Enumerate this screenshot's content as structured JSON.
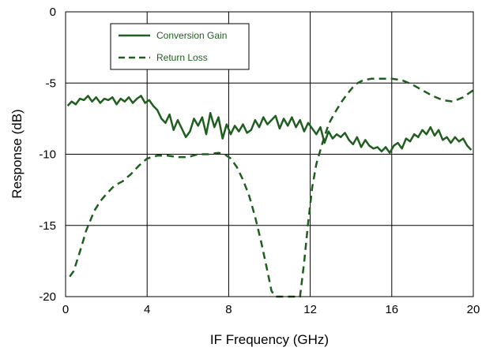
{
  "chart_data": {
    "type": "line",
    "xlabel": "IF Frequency (GHz)",
    "ylabel": "Response (dB)",
    "xlim": [
      0,
      20
    ],
    "ylim": [
      -20,
      0
    ],
    "x_ticks": [
      0,
      4,
      8,
      12,
      16,
      20
    ],
    "y_ticks": [
      0,
      -5,
      -10,
      -15,
      -20
    ],
    "x_tick_labels": [
      "0",
      "4",
      "8",
      "12",
      "16",
      "20"
    ],
    "y_tick_labels": [
      "0",
      "-5",
      "-10",
      "-15",
      "-20"
    ],
    "grid": true,
    "legend_position": "top-left",
    "series": [
      {
        "name": "Conversion Gain",
        "style": "solid",
        "color": "#1f5e1f",
        "x": [
          0.1,
          0.3,
          0.5,
          0.7,
          0.9,
          1.1,
          1.3,
          1.5,
          1.7,
          1.9,
          2.1,
          2.3,
          2.5,
          2.7,
          2.9,
          3.1,
          3.3,
          3.5,
          3.7,
          3.9,
          4.1,
          4.3,
          4.5,
          4.7,
          4.9,
          5.1,
          5.3,
          5.5,
          5.7,
          5.9,
          6.1,
          6.3,
          6.5,
          6.7,
          6.9,
          7.1,
          7.3,
          7.5,
          7.7,
          7.9,
          8.1,
          8.3,
          8.5,
          8.7,
          8.9,
          9.1,
          9.3,
          9.5,
          9.7,
          9.9,
          10.1,
          10.3,
          10.5,
          10.7,
          10.9,
          11.1,
          11.3,
          11.5,
          11.7,
          11.9,
          12.1,
          12.3,
          12.5,
          12.7,
          12.9,
          13.1,
          13.3,
          13.5,
          13.7,
          13.9,
          14.1,
          14.3,
          14.5,
          14.7,
          14.9,
          15.1,
          15.3,
          15.5,
          15.7,
          15.9,
          16.1,
          16.3,
          16.5,
          16.7,
          16.9,
          17.1,
          17.3,
          17.5,
          17.7,
          17.9,
          18.1,
          18.3,
          18.5,
          18.7,
          18.9,
          19.1,
          19.3,
          19.5,
          19.7,
          19.9
        ],
        "values": [
          -6.6,
          -6.3,
          -6.5,
          -6.1,
          -6.2,
          -5.9,
          -6.3,
          -6.0,
          -6.4,
          -6.1,
          -6.2,
          -6.0,
          -6.5,
          -6.1,
          -6.3,
          -6.0,
          -6.4,
          -6.1,
          -5.9,
          -6.4,
          -6.2,
          -6.6,
          -6.9,
          -7.5,
          -7.8,
          -7.2,
          -8.3,
          -7.6,
          -8.2,
          -8.8,
          -8.4,
          -7.5,
          -8.0,
          -7.4,
          -8.6,
          -7.1,
          -8.1,
          -7.4,
          -8.9,
          -7.9,
          -8.6,
          -8.0,
          -8.4,
          -7.9,
          -8.5,
          -8.3,
          -7.6,
          -8.1,
          -7.4,
          -7.9,
          -7.6,
          -7.3,
          -8.2,
          -7.5,
          -8.0,
          -7.4,
          -8.1,
          -7.6,
          -8.4,
          -7.8,
          -8.2,
          -8.6,
          -8.1,
          -9.2,
          -8.4,
          -8.9,
          -8.6,
          -8.8,
          -8.5,
          -9.0,
          -9.3,
          -8.8,
          -9.5,
          -9.0,
          -9.4,
          -9.6,
          -9.5,
          -9.8,
          -9.5,
          -9.9,
          -9.4,
          -9.2,
          -9.6,
          -8.9,
          -9.1,
          -8.6,
          -8.8,
          -8.3,
          -8.6,
          -8.1,
          -8.7,
          -8.3,
          -9.0,
          -8.8,
          -9.2,
          -8.8,
          -9.1,
          -8.9,
          -9.4,
          -9.7
        ]
      },
      {
        "name": "Return Loss",
        "style": "dashed",
        "color": "#1f5e1f",
        "x": [
          0.2,
          0.4,
          0.6,
          0.8,
          1.0,
          1.2,
          1.4,
          1.7,
          2.0,
          2.4,
          2.8,
          3.2,
          3.6,
          4.0,
          4.5,
          5.0,
          5.5,
          6.0,
          6.5,
          7.0,
          7.5,
          7.8,
          8.1,
          8.4,
          8.7,
          9.0,
          9.3,
          9.6,
          9.9,
          10.1,
          10.3,
          11.5,
          11.7,
          11.9,
          12.1,
          12.3,
          12.6,
          12.9,
          13.2,
          13.5,
          13.8,
          14.2,
          14.6,
          15.0,
          15.5,
          16.0,
          16.5,
          17.0,
          17.5,
          18.0,
          18.5,
          19.0,
          19.5,
          20.0
        ],
        "values": [
          -18.6,
          -18.2,
          -17.3,
          -16.4,
          -15.4,
          -14.7,
          -14.0,
          -13.3,
          -12.8,
          -12.2,
          -11.9,
          -11.4,
          -10.8,
          -10.3,
          -10.1,
          -10.1,
          -10.2,
          -10.2,
          -10.0,
          -10.0,
          -9.9,
          -10.0,
          -10.3,
          -10.9,
          -11.8,
          -12.9,
          -14.4,
          -16.2,
          -18.2,
          -19.6,
          -20.0,
          -20.0,
          -17.6,
          -14.8,
          -12.3,
          -10.7,
          -9.2,
          -7.9,
          -7.1,
          -6.4,
          -5.8,
          -5.1,
          -4.8,
          -4.7,
          -4.7,
          -4.7,
          -4.8,
          -5.1,
          -5.5,
          -5.9,
          -6.2,
          -6.3,
          -6.0,
          -5.5
        ]
      }
    ]
  },
  "colors": {
    "series": "#1f5e1f",
    "grid": "#000000",
    "frame": "#000000",
    "background": "#ffffff"
  }
}
